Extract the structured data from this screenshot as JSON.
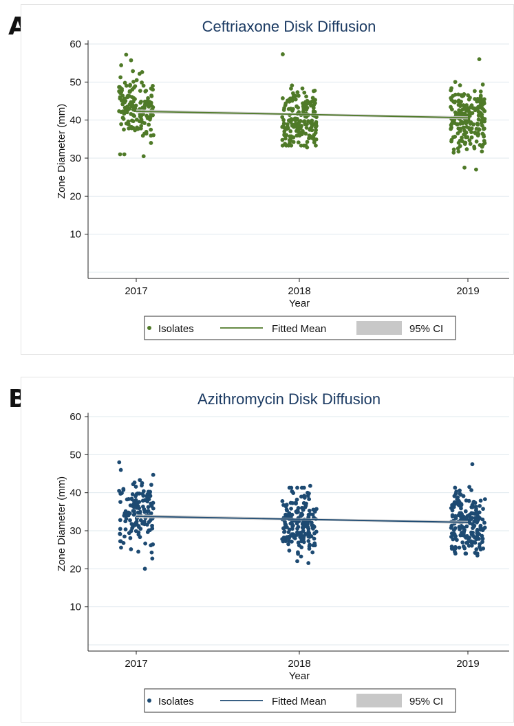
{
  "panels": [
    {
      "letter": "A",
      "accent": "#4f7a28",
      "ci_color": "#c8c8c8"
    },
    {
      "letter": "B",
      "accent": "#1d4a72",
      "ci_color": "#c8c8c8"
    }
  ],
  "chart_data": [
    {
      "type": "scatter",
      "title": "Ceftriaxone Disk Diffusion",
      "xlabel": "Year",
      "ylabel": "Zone Diameter (mm)",
      "x_ticks": [
        "2017",
        "2018",
        "2019"
      ],
      "y_ticks": [
        10,
        20,
        30,
        40,
        50,
        60
      ],
      "ylim": [
        0,
        60
      ],
      "grid": true,
      "legend_position": "bottom",
      "legend": [
        "Isolates",
        "Fitted Mean",
        "95% CI"
      ],
      "series": [
        {
          "name": "Isolates",
          "points_by_year": {
            "2017": {
              "n": 150,
              "mean": 43,
              "sd": 4.4,
              "min": 30.5,
              "max": 57.2
            },
            "2018": {
              "n": 180,
              "mean": 40,
              "sd": 3.9,
              "min": 32.8,
              "max": 57.3
            },
            "2019": {
              "n": 200,
              "mean": 40.5,
              "sd": 4.3,
              "min": 27.0,
              "max": 56.0
            }
          }
        },
        {
          "name": "Fitted Mean",
          "x": [
            2017,
            2018,
            2019
          ],
          "y": [
            42.3,
            41.5,
            40.6
          ]
        },
        {
          "name": "95% CI",
          "x": [
            2017,
            2018,
            2019
          ],
          "lower": [
            41.8,
            41.2,
            40.2
          ],
          "upper": [
            42.8,
            41.8,
            41.0
          ]
        }
      ]
    },
    {
      "type": "scatter",
      "title": "Azithromycin Disk Diffusion",
      "xlabel": "Year",
      "ylabel": "Zone Diameter (mm)",
      "x_ticks": [
        "2017",
        "2018",
        "2019"
      ],
      "y_ticks": [
        10,
        20,
        30,
        40,
        50,
        60
      ],
      "ylim": [
        0,
        60
      ],
      "grid": true,
      "legend_position": "bottom",
      "legend": [
        "Isolates",
        "Fitted Mean",
        "95% CI"
      ],
      "series": [
        {
          "name": "Isolates",
          "points_by_year": {
            "2017": {
              "n": 150,
              "mean": 35,
              "sd": 4.4,
              "min": 20.0,
              "max": 48.0
            },
            "2018": {
              "n": 180,
              "mean": 31.5,
              "sd": 4.2,
              "min": 21.5,
              "max": 41.8
            },
            "2019": {
              "n": 200,
              "mean": 32,
              "sd": 4.1,
              "min": 23.5,
              "max": 47.5
            }
          }
        },
        {
          "name": "Fitted Mean",
          "x": [
            2017,
            2018,
            2019
          ],
          "y": [
            33.8,
            33.0,
            32.2
          ]
        },
        {
          "name": "95% CI",
          "x": [
            2017,
            2018,
            2019
          ],
          "lower": [
            33.3,
            32.7,
            31.8
          ],
          "upper": [
            34.3,
            33.3,
            32.6
          ]
        }
      ]
    }
  ]
}
